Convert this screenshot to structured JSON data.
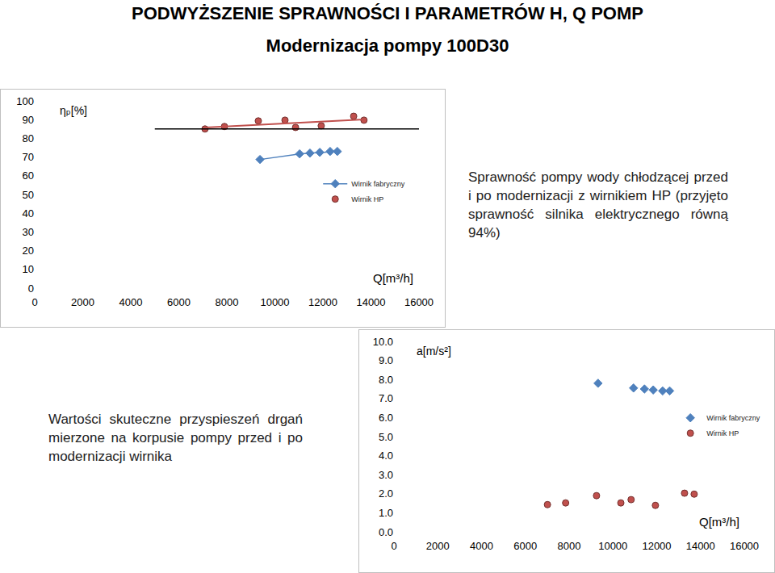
{
  "page": {
    "title": "PODWYŻSZENIE SPRAWNOŚCI I PARAMETRÓW H, Q POMP",
    "subtitle": "Modernizacja pompy 100D30",
    "descriptions": [
      "Sprawność pompy wody chłodzącej przed i po modernizacji z wirnikiem HP (przyjęto sprawność silnika elektrycznego równą 94%)",
      "Wartości skuteczne przyspieszeń drgań mierzone na korpusie pompy przed i po modernizacji wirnika"
    ]
  },
  "chart_data": [
    {
      "type": "scatter",
      "y_label": "ηₚ[%]",
      "x_label": "Q[m³/h]",
      "xlim": [
        0,
        16000
      ],
      "xticks": [
        0,
        2000,
        4000,
        6000,
        8000,
        10000,
        12000,
        14000,
        16000
      ],
      "ylim": [
        0,
        100
      ],
      "yticks": [
        0,
        10,
        20,
        30,
        40,
        50,
        60,
        70,
        80,
        90,
        100
      ],
      "grid": false,
      "legend": "right",
      "series": [
        {
          "name": "Wirnik fabryczny",
          "color": "#4f81bd",
          "marker": "diamond",
          "line_style": "solid",
          "x": [
            9380,
            11030,
            11460,
            11870,
            12300,
            12600
          ],
          "values": [
            68.7,
            71.7,
            72.1,
            72.5,
            73.0,
            73.0
          ]
        },
        {
          "name": "Wirnik HP",
          "color": "#c0504d",
          "marker": "circle",
          "line_style": "trend",
          "x": [
            7090,
            7900,
            9310,
            10420,
            10860,
            11930,
            13280,
            13710
          ],
          "values": [
            85.0,
            86.3,
            89.3,
            89.7,
            85.8,
            86.7,
            91.8,
            89.7
          ]
        }
      ],
      "hline": {
        "y": 85,
        "x": [
          5000,
          16000
        ],
        "color": "#000000"
      }
    },
    {
      "type": "scatter",
      "y_label": "a[m/s²]",
      "x_label": "Q[m³/h]",
      "xlim": [
        0,
        16000
      ],
      "xticks": [
        0,
        2000,
        4000,
        6000,
        8000,
        10000,
        12000,
        14000,
        16000
      ],
      "ylim": [
        0,
        10
      ],
      "yticks": [
        {
          "value": 0,
          "label": "0.0"
        },
        {
          "value": 1,
          "label": "1.0"
        },
        {
          "value": 2,
          "label": "2.0"
        },
        {
          "value": 3,
          "label": "3.0"
        },
        {
          "value": 4,
          "label": "4.0"
        },
        {
          "value": 5,
          "label": "5.0"
        },
        {
          "value": 6,
          "label": "6.0"
        },
        {
          "value": 7,
          "label": "7.0"
        },
        {
          "value": 8,
          "label": "8.0"
        },
        {
          "value": 9,
          "label": "9.0"
        },
        {
          "value": 10,
          "label": "10.0"
        }
      ],
      "grid": false,
      "legend": "right",
      "series": [
        {
          "name": "Wirnik fabryczny",
          "color": "#4f81bd",
          "marker": "diamond",
          "line_style": "none",
          "x": [
            9320,
            10940,
            11440,
            11840,
            12270,
            12590
          ],
          "values": [
            7.8,
            7.55,
            7.5,
            7.45,
            7.4,
            7.4
          ]
        },
        {
          "name": "Wirnik HP",
          "color": "#c0504d",
          "marker": "circle",
          "line_style": "none",
          "x": [
            7010,
            7840,
            9250,
            10360,
            10830,
            11940,
            13270,
            13710
          ],
          "values": [
            1.43,
            1.52,
            1.9,
            1.52,
            1.69,
            1.39,
            2.03,
            1.98
          ]
        }
      ]
    }
  ]
}
